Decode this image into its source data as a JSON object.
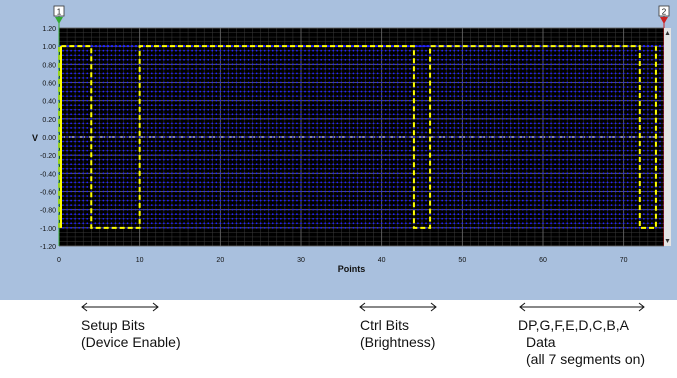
{
  "chart_data": {
    "type": "line",
    "xlabel": "Points",
    "ylabel": "V",
    "xlim": [
      0,
      75
    ],
    "ylim": [
      -1.2,
      1.2
    ],
    "x_ticks": [
      0,
      10,
      20,
      30,
      40,
      50,
      60,
      70
    ],
    "y_ticks": [
      1.2,
      1.0,
      0.8,
      0.6,
      0.4,
      0.2,
      0.0,
      -0.2,
      -0.4,
      -0.6,
      -0.8,
      -1.0,
      -1.2
    ],
    "y_tick_labels": [
      "1.20",
      "1.00",
      "0.80",
      "0.60",
      "0.40",
      "0.20",
      "0.00",
      "-0.20",
      "-0.40",
      "-0.60",
      "-0.80",
      "-1.00",
      "-1.20"
    ],
    "grid": true,
    "series": [
      {
        "color": "#ffff00",
        "style": "dashed",
        "x": [
          0,
          0,
          4,
          4,
          10,
          10,
          44,
          44,
          46,
          46,
          58,
          58,
          72,
          72,
          74,
          74
        ],
        "y": [
          -1,
          1,
          1,
          -1,
          -1,
          1,
          1,
          -1,
          -1,
          1,
          1,
          1,
          1,
          -1,
          -1,
          1
        ]
      },
      {
        "color": "#2222ff",
        "style": "dotted",
        "markers": true,
        "x": [
          0,
          75
        ],
        "y": [
          1,
          1
        ]
      }
    ],
    "cursors": [
      {
        "label": "1",
        "x": 0,
        "color": "#33aa33"
      },
      {
        "label": "2",
        "x": 75,
        "color": "#cc2222"
      }
    ],
    "colors": {
      "background": "#000000",
      "panel": "#a9c0de",
      "grid": "#3a3a3a",
      "zero_line": "#dddddd"
    }
  },
  "annotations": [
    {
      "lines": [
        "Setup Bits",
        "(Device Enable)"
      ]
    },
    {
      "lines": [
        "Ctrl Bits",
        "(Brightness)"
      ]
    },
    {
      "lines": [
        "DP,G,F,E,D,C,B,A",
        "Data",
        "(all 7 segments  on)"
      ]
    }
  ]
}
